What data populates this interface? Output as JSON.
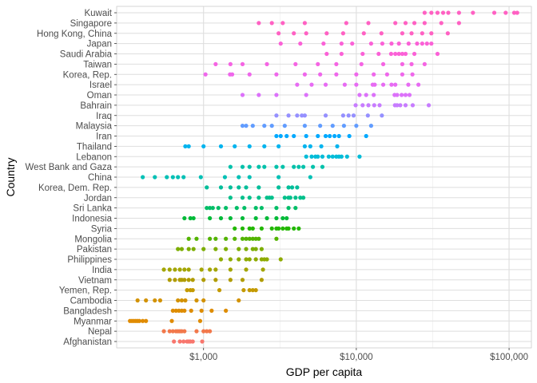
{
  "chart_data": {
    "type": "scatter",
    "xlabel": "GDP per capita",
    "ylabel": "Country",
    "x_scale": "log10",
    "xlim": [
      270,
      140000
    ],
    "x_ticks": [
      1000,
      10000,
      100000
    ],
    "x_tick_labels": [
      "$1,000",
      "$10,000",
      "$100,000"
    ],
    "grid": true,
    "legend": "none",
    "categories": [
      "Kuwait",
      "Singapore",
      "Hong Kong, China",
      "Japan",
      "Saudi Arabia",
      "Taiwan",
      "Korea, Rep.",
      "Israel",
      "Oman",
      "Bahrain",
      "Iraq",
      "Malaysia",
      "Iran",
      "Thailand",
      "Lebanon",
      "West Bank and Gaza",
      "China",
      "Korea, Dem. Rep.",
      "Jordan",
      "Sri Lanka",
      "Indonesia",
      "Syria",
      "Mongolia",
      "Pakistan",
      "Philippines",
      "India",
      "Vietnam",
      "Yemen, Rep.",
      "Cambodia",
      "Bangladesh",
      "Myanmar",
      "Nepal",
      "Afghanistan"
    ],
    "series": [
      {
        "country": "Kuwait",
        "color": "#FF61C3",
        "values": [
          28000,
          31000,
          34000,
          37000,
          40000,
          47000,
          58000,
          80000,
          95000,
          108000,
          113000
        ]
      },
      {
        "country": "Singapore",
        "color": "#FF61C3",
        "values": [
          2300,
          2800,
          3300,
          4600,
          8600,
          12000,
          18000,
          21000,
          24000,
          28000,
          36000,
          47000
        ]
      },
      {
        "country": "Hong Kong, China",
        "color": "#FF61C3",
        "values": [
          3100,
          3900,
          4700,
          6400,
          8200,
          11200,
          14600,
          20000,
          23000,
          27000,
          31000,
          39700
        ]
      },
      {
        "country": "Japan",
        "color": "#FB61D7",
        "values": [
          3200,
          4300,
          6100,
          8000,
          9400,
          12500,
          14800,
          17000,
          19000,
          22000,
          25000,
          27000,
          29000,
          31000
        ]
      },
      {
        "country": "Saudi Arabia",
        "color": "#FB61D7",
        "values": [
          6400,
          8000,
          11000,
          14000,
          16900,
          18000,
          19000,
          20000,
          21000,
          24000,
          34000
        ]
      },
      {
        "country": "Taiwan",
        "color": "#F564E3",
        "values": [
          1200,
          1500,
          1800,
          2600,
          4000,
          5600,
          7400,
          10800,
          15000,
          20000,
          23000,
          28000
        ]
      },
      {
        "country": "Korea, Rep.",
        "color": "#EF67EB",
        "values": [
          1030,
          1490,
          1540,
          2000,
          3000,
          4600,
          5800,
          7400,
          10000,
          13000,
          15900,
          20000,
          23300
        ]
      },
      {
        "country": "Israel",
        "color": "#E76BF3",
        "values": [
          4100,
          5100,
          6300,
          8400,
          10000,
          12800,
          13200,
          15000,
          17000,
          18000,
          21900,
          25500
        ]
      },
      {
        "country": "Oman",
        "color": "#DC71FA",
        "values": [
          1800,
          2300,
          3000,
          4700,
          10500,
          11600,
          13000,
          17800,
          18500,
          19800,
          21000,
          22300
        ]
      },
      {
        "country": "Bahrain",
        "color": "#C77CFF",
        "values": [
          9900,
          11000,
          12000,
          13100,
          14200,
          17900,
          18500,
          19400,
          21000,
          23400,
          29800
        ]
      },
      {
        "country": "Iraq",
        "color": "#9590FF",
        "values": [
          3000,
          3600,
          4100,
          4400,
          4600,
          6300,
          8200,
          8900,
          9600,
          11900,
          14700
        ]
      },
      {
        "country": "Malaysia",
        "color": "#619CFF",
        "values": [
          1800,
          1900,
          2100,
          2500,
          2800,
          3400,
          4600,
          5800,
          7000,
          8300,
          10000,
          12500
        ]
      },
      {
        "country": "Iran",
        "color": "#00A9FF",
        "values": [
          3000,
          3200,
          3500,
          3900,
          4700,
          5600,
          6300,
          6700,
          7200,
          7700,
          9000,
          11600
        ]
      },
      {
        "country": "Thailand",
        "color": "#00B4EF",
        "values": [
          760,
          800,
          1000,
          1300,
          1600,
          2000,
          2500,
          3100,
          4600,
          5000,
          5900,
          7500
        ]
      },
      {
        "country": "Lebanon",
        "color": "#00BCD8",
        "values": [
          4700,
          5100,
          5400,
          5600,
          6000,
          6600,
          7000,
          7400,
          7700,
          8000,
          8700,
          10500
        ]
      },
      {
        "country": "West Bank and Gaza",
        "color": "#00C1AA",
        "values": [
          1500,
          1800,
          2000,
          2300,
          2500,
          3000,
          3300,
          3900,
          4200,
          4500,
          5200,
          6000
        ]
      },
      {
        "country": "China",
        "color": "#00C0B5",
        "values": [
          400,
          480,
          575,
          630,
          680,
          740,
          960,
          1380,
          1700,
          2000,
          3100,
          5000
        ]
      },
      {
        "country": "Korea, Dem. Rep.",
        "color": "#00BE9A",
        "values": [
          1050,
          1300,
          1500,
          1700,
          1900,
          2300,
          3100,
          3600,
          3800,
          4100
        ]
      },
      {
        "country": "Jordan",
        "color": "#00C08B",
        "values": [
          1500,
          1800,
          2000,
          2300,
          2600,
          2700,
          2800,
          3400,
          3600,
          3700,
          4000,
          4300,
          4500
        ]
      },
      {
        "country": "Sri Lanka",
        "color": "#00BE67",
        "values": [
          1050,
          1100,
          1150,
          1250,
          1400,
          1650,
          1850,
          2200,
          2400,
          3000,
          3600,
          4000
        ]
      },
      {
        "country": "Indonesia",
        "color": "#00BA38",
        "values": [
          750,
          820,
          860,
          1100,
          1300,
          1500,
          1800,
          2200,
          2600,
          3000,
          3300,
          3500
        ]
      },
      {
        "country": "Syria",
        "color": "#22B800",
        "values": [
          1600,
          1800,
          2000,
          2100,
          2400,
          2800,
          3000,
          3100,
          3300,
          3500,
          3600,
          3900,
          4200
        ]
      },
      {
        "country": "Mongolia",
        "color": "#53B400",
        "values": [
          800,
          900,
          1100,
          1200,
          1400,
          1600,
          1800,
          1900,
          2000,
          2100,
          2200,
          2300,
          3000
        ]
      },
      {
        "country": "Pakistan",
        "color": "#7CAE00",
        "values": [
          680,
          720,
          800,
          860,
          1000,
          1200,
          1400,
          1700,
          1900,
          2100,
          2200,
          2400
        ]
      },
      {
        "country": "Philippines",
        "color": "#8EAB00",
        "values": [
          1300,
          1500,
          1700,
          1900,
          2000,
          2200,
          2400,
          2500,
          2600,
          3200
        ]
      },
      {
        "country": "India",
        "color": "#A3A500",
        "values": [
          550,
          600,
          650,
          700,
          750,
          800,
          970,
          1100,
          1200,
          1500,
          1900,
          2450
        ]
      },
      {
        "country": "Vietnam",
        "color": "#B09C00",
        "values": [
          600,
          650,
          700,
          720,
          750,
          800,
          850,
          1000,
          1200,
          1500,
          1800,
          2400
        ]
      },
      {
        "country": "Yemen, Rep.",
        "color": "#C49A00",
        "values": [
          780,
          820,
          850,
          1270,
          1830,
          2000,
          2100,
          2200
        ]
      },
      {
        "country": "Cambodia",
        "color": "#D39200",
        "values": [
          370,
          420,
          480,
          520,
          680,
          720,
          760,
          900,
          1000,
          1700
        ]
      },
      {
        "country": "Bangladesh",
        "color": "#DE8C00",
        "values": [
          630,
          660,
          690,
          720,
          750,
          830,
          970,
          1130,
          1400
        ]
      },
      {
        "country": "Myanmar",
        "color": "#E08B00",
        "values": [
          330,
          340,
          350,
          360,
          370,
          380,
          400,
          420,
          620,
          950
        ]
      },
      {
        "country": "Nepal",
        "color": "#F2784B",
        "values": [
          550,
          600,
          630,
          660,
          680,
          700,
          720,
          750,
          900,
          1000,
          1050,
          1100
        ]
      },
      {
        "country": "Afghanistan",
        "color": "#F8766D",
        "values": [
          640,
          700,
          740,
          780,
          800,
          820,
          850,
          980
        ]
      }
    ]
  }
}
